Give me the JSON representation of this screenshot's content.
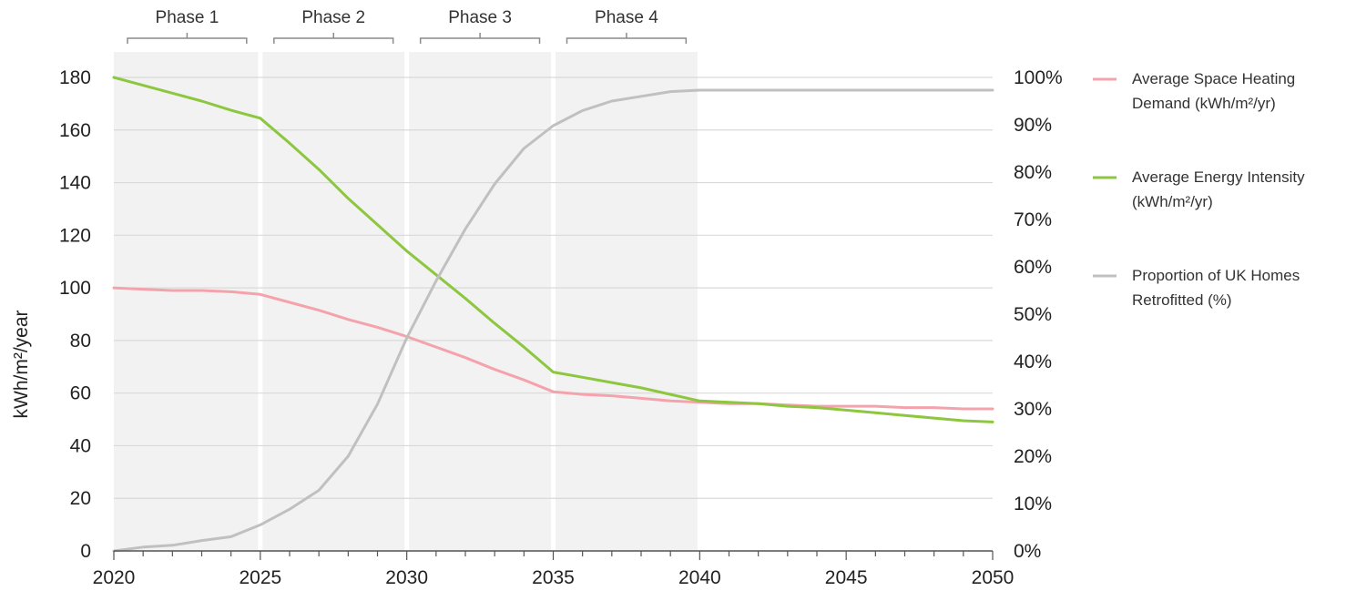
{
  "chart_data": {
    "type": "line",
    "title": "",
    "xlabel": "",
    "ylabel": "kWh/m²/year",
    "xlim": [
      2020,
      2050
    ],
    "ylim": [
      0,
      180
    ],
    "y2lim": [
      0,
      100
    ],
    "x_ticks": [
      "2020",
      "2025",
      "2030",
      "2035",
      "2040",
      "2045",
      "2050"
    ],
    "y_ticks": [
      "0",
      "20",
      "40",
      "60",
      "80",
      "100",
      "120",
      "140",
      "160",
      "180"
    ],
    "y2_ticks": [
      "0%",
      "10%",
      "20%",
      "30%",
      "40%",
      "50%",
      "60%",
      "70%",
      "80%",
      "90%",
      "100%"
    ],
    "grid": true,
    "legend_position": "right",
    "phases": [
      {
        "label": "Phase 1",
        "start": 2020,
        "end": 2025
      },
      {
        "label": "Phase 2",
        "start": 2025,
        "end": 2030
      },
      {
        "label": "Phase 3",
        "start": 2030,
        "end": 2035
      },
      {
        "label": "Phase 4",
        "start": 2035,
        "end": 2040
      }
    ],
    "series": [
      {
        "name": "Average Space Heating Demand (kWh/m²/yr)",
        "legend_lines": [
          "Average Space Heating",
          "Demand (kWh/m²/yr)"
        ],
        "color": "#f4a3ac",
        "axis": "left",
        "x": [
          2020,
          2021,
          2022,
          2023,
          2024,
          2025,
          2026,
          2027,
          2028,
          2029,
          2030,
          2031,
          2032,
          2033,
          2034,
          2035,
          2036,
          2037,
          2038,
          2039,
          2040,
          2041,
          2042,
          2043,
          2044,
          2045,
          2046,
          2047,
          2048,
          2049,
          2050
        ],
        "values": [
          100,
          99.5,
          99,
          99,
          98.5,
          97.5,
          94.5,
          91.5,
          88,
          85,
          81.5,
          77.5,
          73.5,
          69,
          65,
          60.5,
          59.5,
          59,
          58,
          57,
          56.5,
          56,
          56,
          55.5,
          55,
          55,
          55,
          54.5,
          54.5,
          54,
          54
        ]
      },
      {
        "name": "Average Energy Intensity (kWh/m²/yr)",
        "legend_lines": [
          "Average Energy Intensity",
          "(kWh/m²/yr)"
        ],
        "color": "#8dc63f",
        "axis": "left",
        "x": [
          2020,
          2021,
          2022,
          2023,
          2024,
          2025,
          2026,
          2027,
          2028,
          2029,
          2030,
          2031,
          2032,
          2033,
          2034,
          2035,
          2036,
          2037,
          2038,
          2039,
          2040,
          2041,
          2042,
          2043,
          2044,
          2045,
          2046,
          2047,
          2048,
          2049,
          2050
        ],
        "values": [
          180,
          177,
          174,
          171,
          167.5,
          164.5,
          155,
          145,
          134,
          124,
          114,
          105,
          96,
          86.5,
          77.5,
          68,
          66,
          64,
          62,
          59.5,
          57,
          56.5,
          56,
          55,
          54.5,
          53.5,
          52.5,
          51.5,
          50.5,
          49.5,
          49
        ]
      },
      {
        "name": "Proportion of UK Homes Retrofitted (%)",
        "legend_lines": [
          "Proportion of UK Homes",
          "Retrofitted (%)"
        ],
        "color": "#c0c0c0",
        "axis": "right",
        "x": [
          2020,
          2021,
          2022,
          2023,
          2024,
          2025,
          2026,
          2027,
          2028,
          2029,
          2030,
          2031,
          2032,
          2033,
          2034,
          2035,
          2036,
          2037,
          2038,
          2039,
          2040,
          2041,
          2042,
          2043,
          2044,
          2045,
          2046,
          2047,
          2048,
          2049,
          2050
        ],
        "values": [
          0,
          0.8,
          1.2,
          2.2,
          3,
          5.5,
          8.8,
          12.8,
          20,
          31,
          45,
          57,
          68,
          77.5,
          85,
          89.8,
          93,
          95,
          96,
          97,
          97.3,
          97.3,
          97.3,
          97.3,
          97.3,
          97.3,
          97.3,
          97.3,
          97.3,
          97.3,
          97.3
        ]
      }
    ]
  }
}
